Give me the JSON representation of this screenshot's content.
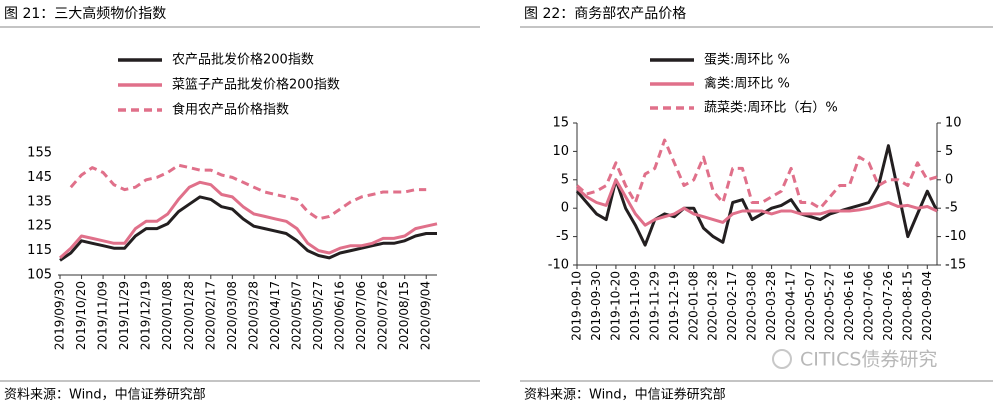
{
  "chart_data": [
    {
      "type": "line",
      "title": "图 21：三大高频物价指数",
      "source": "资料来源：Wind，中信证券研究部",
      "categories": [
        "2019/09/30",
        null,
        "2019/10/20",
        null,
        "2019/11/09",
        null,
        "2019/11/29",
        null,
        "2019/12/19",
        null,
        "2020/01/08",
        null,
        "2020/01/28",
        null,
        "2020/02/17",
        null,
        "2020/03/08",
        null,
        "2020/03/28",
        null,
        "2020/04/17",
        null,
        "2020/05/07",
        null,
        "2020/05/27",
        null,
        "2020/06/16",
        null,
        "2020/07/06",
        null,
        "2020/07/26",
        null,
        "2020/08/15",
        null,
        "2020/09/04",
        null
      ],
      "series": [
        {
          "name": "农产品批发价格200指数",
          "color": "#231f20",
          "dash": false,
          "values": [
            111,
            114,
            119,
            118,
            117,
            116,
            116,
            121,
            124,
            124,
            126,
            131,
            134,
            137,
            136,
            133,
            132,
            128,
            125,
            124,
            123,
            122,
            119,
            115,
            113,
            112,
            114,
            115,
            116,
            117,
            118,
            118,
            119,
            121,
            122,
            122
          ]
        },
        {
          "name": "菜篮子产品批发价格200指数",
          "color": "#e0708a",
          "dash": false,
          "values": [
            112,
            116,
            121,
            120,
            119,
            118,
            118,
            124,
            127,
            127,
            130,
            136,
            141,
            143,
            142,
            138,
            137,
            133,
            130,
            129,
            128,
            127,
            124,
            118,
            115,
            114,
            116,
            117,
            117,
            118,
            120,
            120,
            121,
            124,
            125,
            126
          ]
        },
        {
          "name": "食用农产品价格指数",
          "color": "#e0708a",
          "dash": true,
          "values": [
            null,
            141,
            146,
            149,
            147,
            142,
            140,
            141,
            144,
            145,
            147,
            150,
            149,
            148,
            148,
            146,
            145,
            143,
            141,
            139,
            138,
            137,
            136,
            131,
            128,
            129,
            132,
            135,
            137,
            138,
            139,
            139,
            139,
            140,
            140,
            null
          ]
        }
      ],
      "ylim": [
        105,
        155
      ],
      "yticks": [
        105,
        115,
        125,
        135,
        145,
        155
      ],
      "legend": "upper left"
    },
    {
      "type": "line",
      "title": "图 22：商务部农产品价格",
      "source": "资料来源：Wind，中信证券研究部",
      "categories": [
        "2019-09-10",
        null,
        "2019-09-30",
        null,
        "2019-10-20",
        null,
        "2019-11-09",
        null,
        "2019-11-29",
        null,
        "2019-12-19",
        null,
        "2020-01-08",
        null,
        "2020-01-28",
        null,
        "2020-02-17",
        null,
        "2020-03-08",
        null,
        "2020-03-28",
        null,
        "2020-04-17",
        null,
        "2020-05-07",
        null,
        "2020-05-27",
        null,
        "2020-06-16",
        null,
        "2020-07-06",
        null,
        "2020-07-26",
        null,
        "2020-08-15",
        null,
        "2020-09-04",
        null
      ],
      "series": [
        {
          "name": "蛋类:周环比 %",
          "color": "#231f20",
          "dash": false,
          "axis": "y",
          "values": [
            3,
            1,
            -1,
            -2,
            5,
            0,
            -3,
            -6.5,
            -2,
            -1,
            -1.5,
            0,
            0,
            -3.5,
            -5,
            -6,
            1,
            1.5,
            -2,
            -1,
            0,
            0.5,
            1.5,
            -1,
            -1.5,
            -2,
            -1,
            -0.5,
            0,
            0.5,
            1,
            4,
            11,
            3,
            -5,
            -1,
            3,
            -0.5
          ]
        },
        {
          "name": "禽类:周环比 %",
          "color": "#e0708a",
          "dash": false,
          "axis": "y",
          "values": [
            3.5,
            2,
            1,
            0.5,
            5,
            2,
            -1,
            -3,
            -2,
            -1.5,
            -1,
            0,
            -1,
            -1.5,
            -2,
            -2.5,
            -1,
            -0.5,
            -0.5,
            -0.5,
            -1,
            -0.5,
            -0.5,
            -1,
            -1,
            -1,
            -0.5,
            -0.5,
            -0.5,
            -0.3,
            0,
            0.5,
            1,
            0.3,
            0.5,
            0,
            0.3,
            -0.5
          ]
        },
        {
          "name": "蔬菜类:周环比（右）%",
          "color": "#e0708a",
          "dash": true,
          "axis": "y2",
          "values": [
            -1,
            -2.5,
            -2,
            -1,
            3,
            -1,
            -4,
            1,
            2,
            7,
            3,
            -1,
            0,
            4,
            -2,
            -4,
            2,
            2,
            -4,
            -4,
            -3,
            -2,
            2,
            -4,
            -4,
            -5,
            -3,
            -1,
            -1,
            4,
            3,
            -1,
            0,
            0,
            -1,
            3,
            0,
            0.5
          ]
        }
      ],
      "ylim": [
        -10,
        15
      ],
      "yticks": [
        -10,
        -5,
        0,
        5,
        10,
        15
      ],
      "y2lim": [
        -15,
        10
      ],
      "y2ticks": [
        -15,
        -10,
        -5,
        0,
        5,
        10
      ],
      "legend": "upper left"
    }
  ],
  "watermark": "CITICS债券研究"
}
